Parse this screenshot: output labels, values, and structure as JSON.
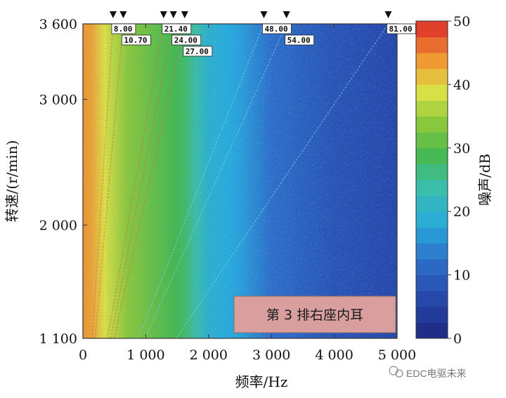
{
  "chart_data": {
    "type": "heatmap",
    "title": "",
    "xlabel": "频率/Hz",
    "ylabel": "转速/(r/min)",
    "xlim": [
      0,
      5000
    ],
    "ylim": [
      1100,
      3600
    ],
    "x_ticks": [
      0,
      1000,
      2000,
      3000,
      4000,
      5000
    ],
    "x_tick_labels": [
      "0",
      "1 000",
      "2 000",
      "3 000",
      "4 000",
      "5 000"
    ],
    "y_ticks": [
      1100,
      2000,
      3000,
      3600
    ],
    "y_tick_labels": [
      "1 100",
      "2 000",
      "3 000",
      "3 600"
    ],
    "colorbar": {
      "label": "噪声/dB",
      "range": [
        0,
        50
      ],
      "ticks": [
        0,
        10,
        20,
        30,
        40,
        50
      ],
      "tick_labels": [
        "0",
        "10",
        "20",
        "30",
        "40",
        "50"
      ]
    },
    "order_markers": [
      {
        "label": "8.00",
        "order": 8.0
      },
      {
        "label": "10.70",
        "order": 10.7
      },
      {
        "label": "21.40",
        "order": 21.4
      },
      {
        "label": "24.00",
        "order": 24.0
      },
      {
        "label": "27.00",
        "order": 27.0
      },
      {
        "label": "48.00",
        "order": 48.0
      },
      {
        "label": "54.00",
        "order": 54.0
      },
      {
        "label": "81.00",
        "order": 81.0
      }
    ],
    "level_profile_db": {
      "frequency_hz": [
        0,
        150,
        400,
        700,
        1000,
        1300,
        1600,
        2000,
        2500,
        3000,
        4000,
        5000
      ],
      "level_db": [
        44,
        43,
        38,
        34,
        32,
        30,
        28,
        20,
        17,
        12,
        8,
        6
      ]
    },
    "annotation": "第 3 排右座内耳"
  },
  "watermark": "EDC电驱未来"
}
